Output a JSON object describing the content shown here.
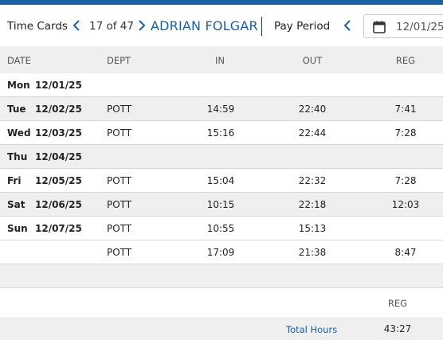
{
  "header": {
    "title": "Time Cards",
    "record_counter": "17 of 47",
    "employee_name": "ADRIAN FOLGAR",
    "pay_period_label": "Pay Period",
    "pay_period_date": "12/01/25",
    "accent_color": "#1b5fa3"
  },
  "table": {
    "columns": {
      "date": "DATE",
      "dept": "DEPT",
      "in": "IN",
      "out": "OUT",
      "reg": "REG"
    },
    "rows": [
      {
        "day": "Mon",
        "date": "12/01/25",
        "dept": "",
        "in": "",
        "out": "",
        "reg": ""
      },
      {
        "day": "Tue",
        "date": "12/02/25",
        "dept": "POTT",
        "in": "14:59",
        "out": "22:40",
        "reg": "7:41"
      },
      {
        "day": "Wed",
        "date": "12/03/25",
        "dept": "POTT",
        "in": "15:16",
        "out": "22:44",
        "reg": "7:28"
      },
      {
        "day": "Thu",
        "date": "12/04/25",
        "dept": "",
        "in": "",
        "out": "",
        "reg": ""
      },
      {
        "day": "Fri",
        "date": "12/05/25",
        "dept": "POTT",
        "in": "15:04",
        "out": "22:32",
        "reg": "7:28"
      },
      {
        "day": "Sat",
        "date": "12/06/25",
        "dept": "POTT",
        "in": "10:15",
        "out": "22:18",
        "reg": "12:03"
      },
      {
        "day": "Sun",
        "date": "12/07/25",
        "dept": "POTT",
        "in": "10:55",
        "out": "15:13",
        "reg": ""
      },
      {
        "day": "",
        "date": "",
        "dept": "POTT",
        "in": "17:09",
        "out": "21:38",
        "reg": "8:47"
      }
    ]
  },
  "summary": {
    "reg_header": "REG",
    "total_label": "Total Hours",
    "total_reg": "43:27"
  }
}
